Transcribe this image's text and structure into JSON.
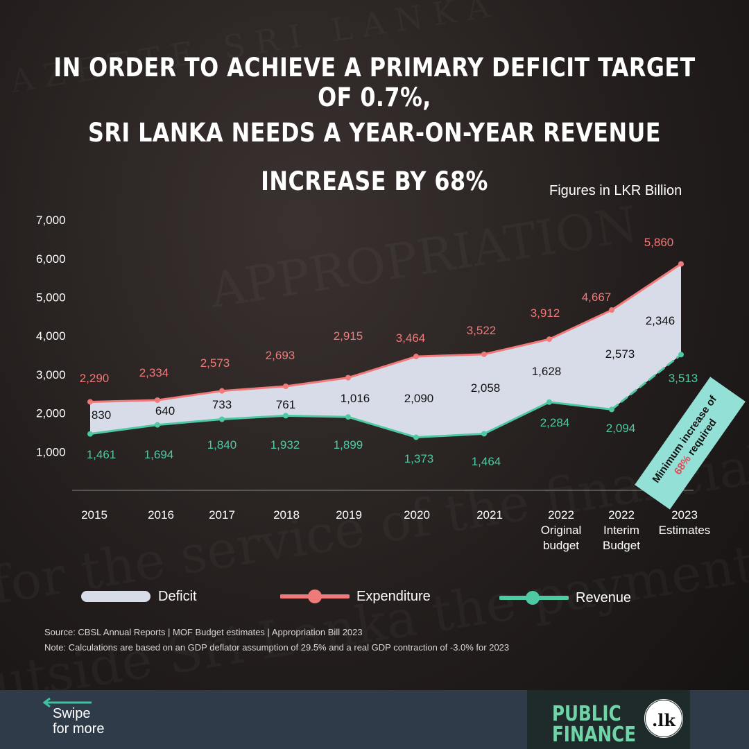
{
  "title": {
    "line1": "IN ORDER TO ACHIEVE A PRIMARY DEFICIT TARGET OF 0.7%,",
    "line2": "SRI LANKA NEEDS A YEAR-ON-YEAR REVENUE",
    "line3": "INCREASE BY 68%"
  },
  "units": "Figures in LKR Billion",
  "chart_data": {
    "type": "line",
    "categories": [
      [
        "2015"
      ],
      [
        "2016"
      ],
      [
        "2017"
      ],
      [
        "2018"
      ],
      [
        "2019"
      ],
      [
        "2020"
      ],
      [
        "2021"
      ],
      [
        "2022",
        "Original",
        "budget"
      ],
      [
        "2022",
        "Interim",
        "Budget"
      ],
      [
        "2023",
        "Estimates"
      ]
    ],
    "ylim": [
      0,
      7000
    ],
    "yticks": [
      "1,000",
      "2,000",
      "3,000",
      "4,000",
      "5,000",
      "6,000",
      "7,000"
    ],
    "ytick_values": [
      1000,
      2000,
      3000,
      4000,
      5000,
      6000,
      7000
    ],
    "series": [
      {
        "name": "Expenditure",
        "color": "#f07a7a",
        "values": [
          2290,
          2334,
          2573,
          2693,
          2915,
          3464,
          3522,
          3912,
          4667,
          5860
        ],
        "labels": [
          "2,290",
          "2,334",
          "2,573",
          "2,693",
          "2,915",
          "3,464",
          "3,522",
          "3,912",
          "4,667",
          "5,860"
        ]
      },
      {
        "name": "Revenue",
        "color": "#4ec9a3",
        "values": [
          1461,
          1694,
          1840,
          1932,
          1899,
          1373,
          1464,
          2284,
          2094,
          3513
        ],
        "labels": [
          "1,461",
          "1,694",
          "1,840",
          "1,932",
          "1,899",
          "1,373",
          "1,464",
          "2,284",
          "2,094",
          "3,513"
        ]
      },
      {
        "name": "Deficit",
        "color": "#d8dce8",
        "values": [
          830,
          640,
          733,
          761,
          1016,
          2090,
          2058,
          1628,
          2573,
          2346
        ],
        "labels": [
          "830",
          "640",
          "733",
          "761",
          "1,016",
          "2,090",
          "2,058",
          "1,628",
          "2,573",
          "2,346"
        ]
      }
    ],
    "annotation": {
      "pre": "Minimum increase of",
      "highlight": "68%",
      "post": "required"
    },
    "legend": {
      "deficit": "Deficit",
      "expenditure": "Expenditure",
      "revenue": "Revenue"
    }
  },
  "source": {
    "line1": "Source: CBSL Annual Reports | MOF Budget estimates | Appropriation Bill 2023",
    "line2": "Note: Calculations are based on an GDP deflator assumption of 29.5% and a real GDP contraction of -3.0% for 2023"
  },
  "footer": {
    "swipe_line1": "Swipe",
    "swipe_line2": "for more",
    "logo_line1": "PUBLIC",
    "logo_line2": "FINANCE",
    "logo_badge": ".lk"
  },
  "colors": {
    "accent_exp": "#f07a7a",
    "accent_rev": "#4ec9a3",
    "deficit_fill": "#d8dce8",
    "footer_bg": "#2f3b48"
  }
}
